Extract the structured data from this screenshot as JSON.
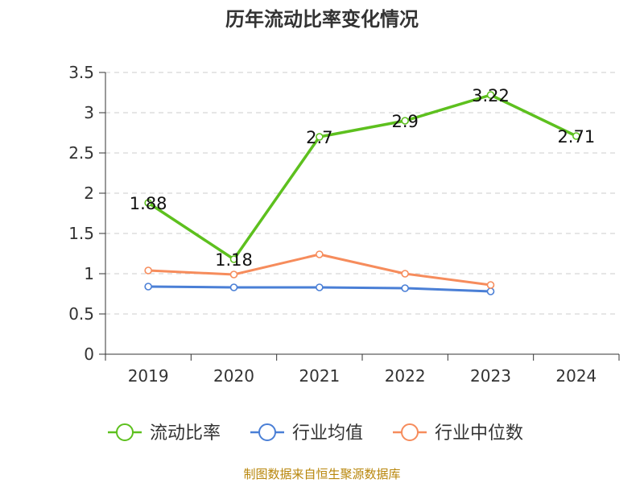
{
  "chart_data": {
    "type": "line",
    "title": "历年流动比率变化情况",
    "categories": [
      "2019",
      "2020",
      "2021",
      "2022",
      "2023",
      "2024"
    ],
    "ylim": [
      0,
      3.5
    ],
    "yticks": [
      "0",
      "0.5",
      "1",
      "1.5",
      "2",
      "2.5",
      "3",
      "3.5"
    ],
    "grid": true,
    "legend_position": "bottom",
    "series": [
      {
        "name": "流动比率",
        "color": "#5dc01e",
        "values": [
          1.88,
          1.18,
          2.7,
          2.9,
          3.22,
          2.71
        ],
        "labels": [
          "1.88",
          "1.18",
          "2.7",
          "2.9",
          "3.22",
          "2.71"
        ]
      },
      {
        "name": "行业均值",
        "color": "#4a7fd6",
        "values": [
          0.84,
          0.83,
          0.83,
          0.82,
          0.78,
          null
        ]
      },
      {
        "name": "行业中位数",
        "color": "#f68c5c",
        "values": [
          1.04,
          0.99,
          1.24,
          1.0,
          0.86,
          null
        ]
      }
    ],
    "source": "制图数据来自恒生聚源数据库"
  }
}
